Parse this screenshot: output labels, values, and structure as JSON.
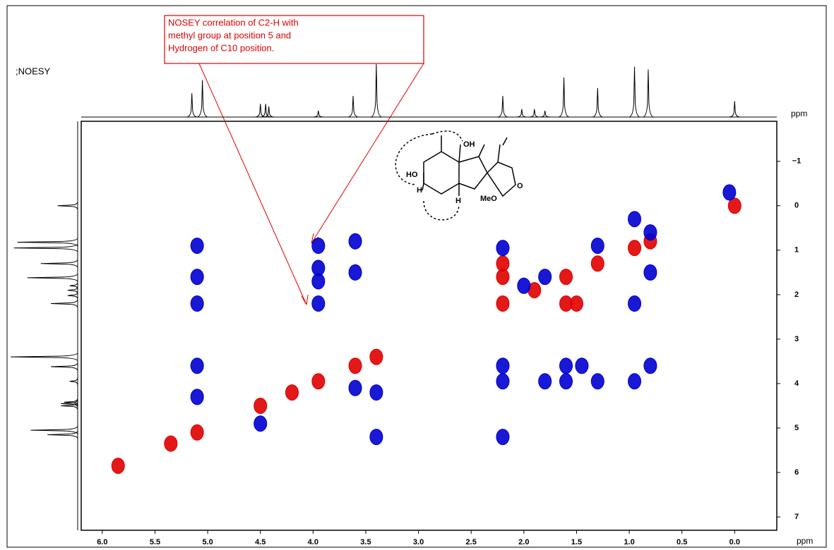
{
  "chart_data": {
    "type": "nmr2d",
    "title": ";NOESY",
    "x_unit": "ppm",
    "y_unit": "ppm",
    "annotation": [
      "NOSEY correlation  of C2-H with",
      "methyl group  at position 5 and",
      "Hydrogen of C10 position."
    ],
    "structure_labels": [
      "OH",
      "HO",
      "H",
      "H",
      "MeO",
      "O"
    ],
    "xlim": [
      6.2,
      -0.4
    ],
    "xticks": [
      {
        "value": 6,
        "label": "6.0"
      },
      5.5,
      {
        "value": 5,
        "label": "5.0"
      },
      4.5,
      {
        "value": 4,
        "label": "4.0"
      },
      3.5,
      {
        "value": 3,
        "label": "3.0"
      },
      2.5,
      {
        "value": 2,
        "label": "2.0"
      },
      1.5,
      {
        "value": 1,
        "label": "1.0"
      },
      0.5,
      {
        "value": 0,
        "label": "0.0"
      }
    ],
    "ylim": [
      -1.9,
      7.3
    ],
    "yticks": [
      {
        "value": -1,
        "label": "−1"
      },
      0,
      1,
      2,
      3,
      4,
      5,
      6,
      7
    ],
    "series": [
      {
        "color": "#e00000",
        "x": [
          0.0,
          0.8,
          0.95,
          1.3,
          1.6,
          1.9,
          2.2,
          3.4,
          3.6,
          3.95,
          4.2,
          4.5,
          5.1,
          5.35,
          5.85,
          2.2,
          2.2,
          1.6,
          1.5
        ],
        "values": [
          0.0,
          0.8,
          0.95,
          1.3,
          1.6,
          1.9,
          2.2,
          3.4,
          3.6,
          3.95,
          4.2,
          4.5,
          5.1,
          5.35,
          5.85,
          1.3,
          1.6,
          2.2,
          2.2
        ]
      },
      {
        "color": "#0000d0",
        "x": [
          5.1,
          5.1,
          5.1,
          5.1,
          5.1,
          3.95,
          3.95,
          3.95,
          3.95,
          3.6,
          3.6,
          3.6,
          3.4,
          3.4,
          2.2,
          2.2,
          2.2,
          2.2,
          1.8,
          1.6,
          1.6,
          1.45,
          1.3,
          0.95,
          0.8,
          0.95,
          0.8,
          0.95,
          0.8,
          1.3,
          0.05,
          4.5,
          2.0,
          1.8
        ],
        "values": [
          0.9,
          1.6,
          2.2,
          3.6,
          4.3,
          0.9,
          1.4,
          1.7,
          2.2,
          0.8,
          1.5,
          4.1,
          5.2,
          4.2,
          0.95,
          3.95,
          3.6,
          5.2,
          3.95,
          3.6,
          3.95,
          3.6,
          3.95,
          3.95,
          3.6,
          2.2,
          1.5,
          0.3,
          0.6,
          0.9,
          -0.3,
          4.9,
          1.8,
          1.6
        ]
      }
    ],
    "projection": {
      "x": [
        5.15,
        5.05,
        4.5,
        4.45,
        4.42,
        3.95,
        3.62,
        3.4,
        2.2,
        2.02,
        1.9,
        1.8,
        1.62,
        1.3,
        0.95,
        0.82,
        0.0
      ],
      "values": [
        0.45,
        0.7,
        0.25,
        0.25,
        0.2,
        0.12,
        0.4,
        1.0,
        0.4,
        0.15,
        0.15,
        0.12,
        0.75,
        0.55,
        0.95,
        0.9,
        0.3
      ]
    }
  }
}
